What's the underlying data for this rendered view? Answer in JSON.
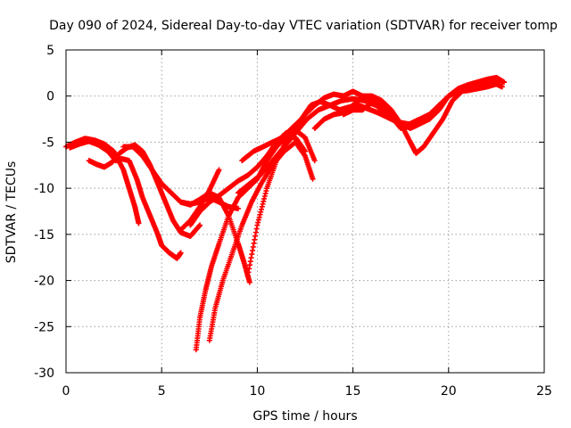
{
  "chart_data": {
    "type": "scatter",
    "title": "Day 090 of 2024, Sidereal Day-to-day VTEC variation (SDTVAR) for receiver tomp",
    "xlabel": "GPS time / hours",
    "ylabel": "SDTVAR / TECUs",
    "xlim": [
      0,
      25
    ],
    "ylim": [
      -30,
      5
    ],
    "xticks": [
      0,
      5,
      10,
      15,
      20,
      25
    ],
    "yticks": [
      -30,
      -25,
      -20,
      -15,
      -10,
      -5,
      0,
      5
    ],
    "xtick_labels": [
      "0",
      "5",
      "10",
      "15",
      "20",
      "25"
    ],
    "ytick_labels": [
      "-30",
      "-25",
      "-20",
      "-15",
      "-10",
      "-5",
      "0",
      "5"
    ],
    "grid": true,
    "marker": "+",
    "color": "#ff0000",
    "series": [
      {
        "x": [
          0.0,
          0.5,
          1.0,
          1.5,
          2.0,
          2.5,
          3.0,
          3.3,
          3.6,
          3.8
        ],
        "y": [
          -5.5,
          -5.0,
          -4.6,
          -4.8,
          -5.2,
          -6.0,
          -8.0,
          -10.0,
          -12.0,
          -13.8
        ]
      },
      {
        "x": [
          0.2,
          0.7,
          1.2,
          1.7,
          2.2,
          2.6,
          2.9,
          3.3,
          3.7,
          4.0,
          4.4,
          4.8,
          5.0,
          5.4,
          5.8,
          6.0
        ],
        "y": [
          -5.6,
          -5.2,
          -4.9,
          -5.3,
          -6.0,
          -7.0,
          -6.8,
          -7.0,
          -9.0,
          -11.0,
          -13.0,
          -15.0,
          -16.2,
          -17.0,
          -17.6,
          -17.0
        ]
      },
      {
        "x": [
          1.2,
          1.6,
          2.0,
          2.4,
          2.8,
          3.2,
          3.6,
          4.0,
          4.4,
          4.8,
          5.2,
          5.6,
          6.0,
          6.5,
          7.0
        ],
        "y": [
          -7.0,
          -7.4,
          -7.7,
          -7.2,
          -6.2,
          -5.6,
          -5.3,
          -6.0,
          -7.5,
          -9.5,
          -11.5,
          -13.5,
          -14.8,
          -15.2,
          -14.0
        ]
      },
      {
        "x": [
          3.0,
          3.5,
          4.0,
          4.5,
          5.0,
          5.5,
          6.0,
          6.5,
          7.0,
          7.5,
          8.0,
          8.5,
          9.0
        ],
        "y": [
          -5.5,
          -5.5,
          -6.5,
          -8.0,
          -9.5,
          -10.5,
          -11.5,
          -11.7,
          -11.5,
          -11.0,
          -11.5,
          -12.0,
          -12.2
        ]
      },
      {
        "x": [
          6.5,
          7.0,
          7.5,
          8.0,
          8.5,
          9.0,
          9.5,
          10.0,
          10.5,
          11.0,
          11.5,
          12.0,
          12.5,
          13.0
        ],
        "y": [
          -14.0,
          -12.5,
          -11.5,
          -10.8,
          -10.0,
          -9.2,
          -8.6,
          -7.7,
          -6.5,
          -5.0,
          -4.0,
          -3.7,
          -4.5,
          -7.0
        ]
      },
      {
        "x": [
          6.8,
          7.0,
          7.3,
          7.6,
          8.0,
          8.5,
          9.0,
          9.5,
          10.0,
          10.5,
          11.0,
          11.5,
          12.0,
          12.5
        ],
        "y": [
          -27.5,
          -24.0,
          -21.0,
          -18.5,
          -16.0,
          -13.0,
          -11.0,
          -10.0,
          -9.0,
          -7.0,
          -5.5,
          -4.5,
          -4.5,
          -6.0
        ]
      },
      {
        "x": [
          7.5,
          7.8,
          8.2,
          8.7,
          9.2,
          9.7,
          10.2,
          10.8,
          11.4,
          12.0,
          12.5,
          12.9
        ],
        "y": [
          -26.5,
          -23.0,
          -20.0,
          -17.0,
          -14.0,
          -11.5,
          -9.5,
          -7.5,
          -6.0,
          -5.0,
          -6.5,
          -9.0
        ]
      },
      {
        "x": [
          6.0,
          6.5,
          7.0,
          7.5,
          8.0,
          8.5,
          9.0,
          9.3,
          9.6
        ],
        "y": [
          -11.5,
          -11.8,
          -11.2,
          -10.5,
          -11.0,
          -13.0,
          -16.0,
          -18.0,
          -20.2
        ]
      },
      {
        "x": [
          6.0,
          6.5,
          7.0,
          7.5,
          8.0
        ],
        "y": [
          -14.5,
          -13.5,
          -12.0,
          -10.2,
          -8.0
        ]
      },
      {
        "x": [
          9.5,
          10.0,
          10.5,
          11.0,
          11.5,
          12.0,
          12.5,
          13.0,
          13.5,
          14.0,
          14.5,
          15.0,
          15.5,
          16.0,
          16.5,
          17.0
        ],
        "y": [
          -19.5,
          -14.0,
          -10.0,
          -7.0,
          -5.0,
          -3.5,
          -2.0,
          -1.0,
          -0.2,
          0.2,
          0.0,
          0.5,
          0.0,
          -0.5,
          -1.0,
          -1.5
        ]
      },
      {
        "x": [
          9.2,
          9.8,
          10.3,
          10.8,
          11.3,
          11.8,
          12.3,
          12.8,
          13.3,
          13.8,
          14.3,
          14.8,
          15.3,
          15.8,
          16.3,
          16.8,
          17.3,
          17.8,
          18.3
        ],
        "y": [
          -7.0,
          -6.0,
          -5.5,
          -5.0,
          -4.5,
          -3.5,
          -2.5,
          -1.0,
          -0.6,
          -1.0,
          -1.5,
          -1.2,
          -1.0,
          -1.4,
          -1.8,
          -2.3,
          -2.8,
          -3.0,
          -3.2
        ]
      },
      {
        "x": [
          9.0,
          9.6,
          10.2,
          10.8,
          11.4,
          12.0,
          12.6,
          13.2,
          13.8,
          14.4,
          15.0,
          15.6,
          16.2,
          16.8,
          17.4,
          18.0,
          18.5,
          19.0,
          19.5,
          20.0,
          20.5,
          21.0,
          21.5,
          22.0,
          22.5,
          22.9
        ],
        "y": [
          -10.5,
          -9.5,
          -8.5,
          -7.0,
          -5.5,
          -4.0,
          -2.5,
          -1.5,
          -1.0,
          -0.5,
          -0.3,
          -0.5,
          -1.0,
          -2.0,
          -3.0,
          -3.5,
          -3.0,
          -2.5,
          -1.5,
          0.0,
          0.8,
          1.2,
          1.5,
          1.8,
          2.0,
          1.5
        ]
      },
      {
        "x": [
          13.0,
          13.5,
          14.0,
          14.5,
          15.0,
          15.5,
          16.0,
          16.5,
          17.0,
          17.5,
          18.0,
          18.3,
          18.7,
          19.2,
          19.7,
          20.2,
          20.7,
          21.2,
          21.7,
          22.2,
          22.7
        ],
        "y": [
          -3.5,
          -2.5,
          -2.0,
          -1.8,
          -1.0,
          0.0,
          0.0,
          -0.5,
          -1.5,
          -3.0,
          -5.0,
          -6.2,
          -5.5,
          -4.0,
          -2.5,
          -0.5,
          0.5,
          1.0,
          1.2,
          1.5,
          1.7
        ]
      },
      {
        "x": [
          14.5,
          15.0,
          15.5,
          16.0,
          16.5,
          17.0,
          17.5,
          18.0,
          18.5,
          19.0,
          19.5,
          20.0,
          20.5,
          21.0,
          21.5,
          22.0,
          22.5,
          22.8
        ],
        "y": [
          -2.0,
          -1.5,
          -1.5,
          -0.7,
          -1.0,
          -2.2,
          -3.5,
          -3.0,
          -2.5,
          -2.0,
          -1.0,
          0.0,
          0.5,
          0.6,
          0.8,
          1.0,
          1.3,
          1.0
        ]
      }
    ]
  }
}
